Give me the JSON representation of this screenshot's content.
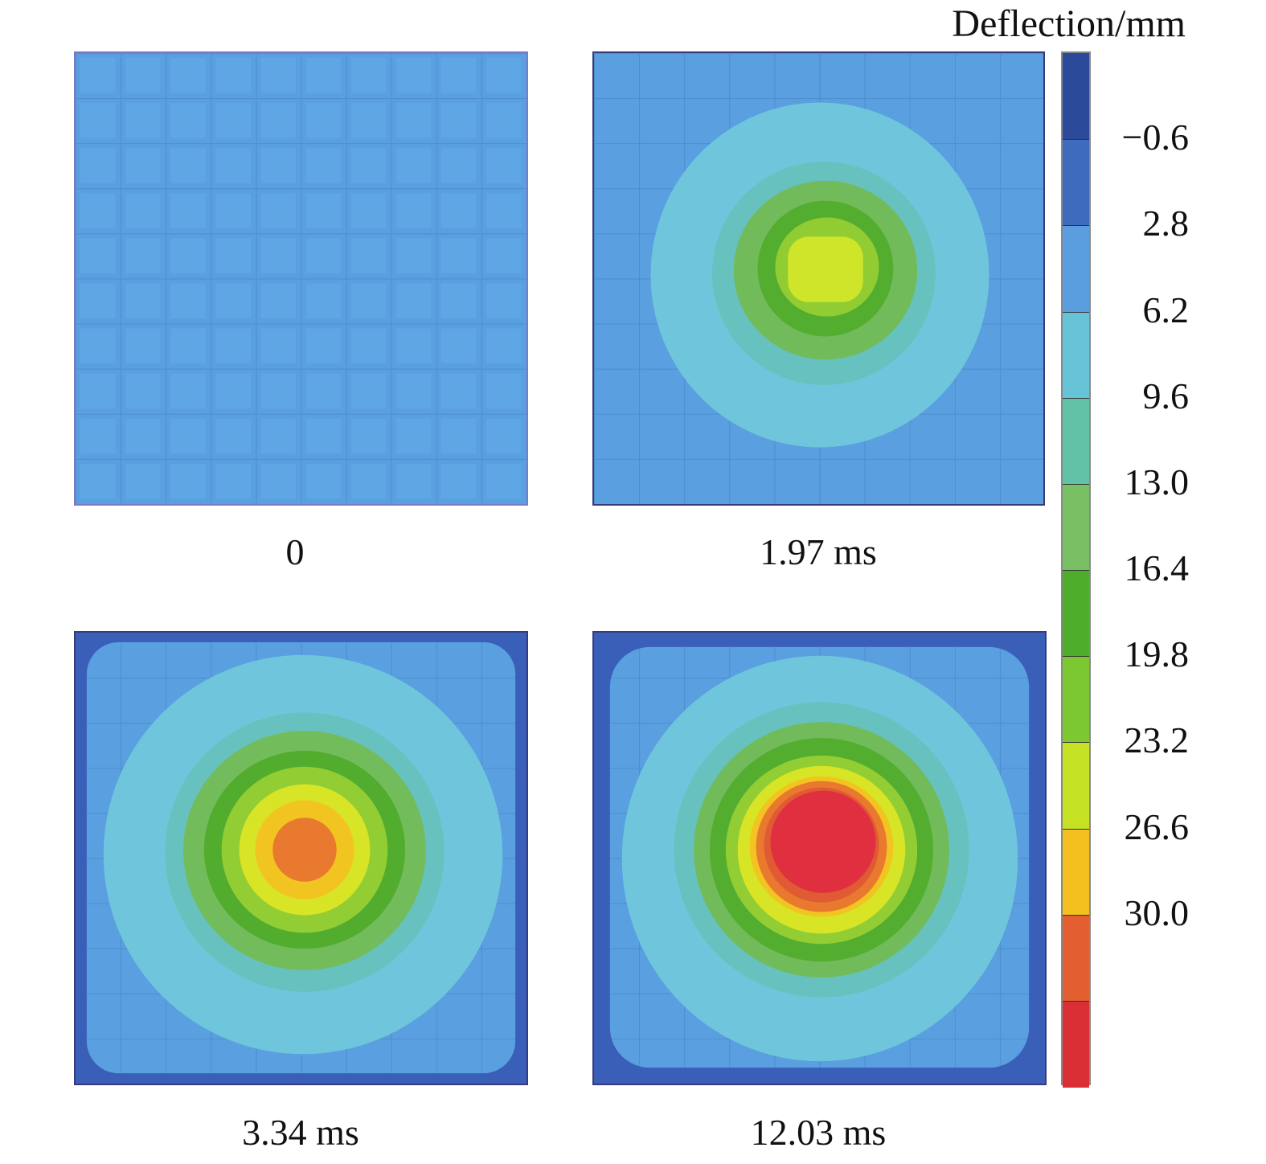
{
  "legend": {
    "title": "Deflection/mm",
    "labels": [
      "−0.6",
      "2.8",
      "6.2",
      "9.6",
      "13.0",
      "16.4",
      "19.8",
      "23.2",
      "26.6",
      "30.0"
    ],
    "colors": [
      "#2b4a9a",
      "#3f6bbf",
      "#5b9ee0",
      "#67c4d8",
      "#62c2a8",
      "#79bf63",
      "#4eae2b",
      "#7cc832",
      "#c4e124",
      "#f4c01f",
      "#e35f32",
      "#da2f35"
    ]
  },
  "panels": [
    {
      "label": "0"
    },
    {
      "label": "1.97 ms"
    },
    {
      "label": "3.34 ms"
    },
    {
      "label": "12.03 ms"
    }
  ]
}
